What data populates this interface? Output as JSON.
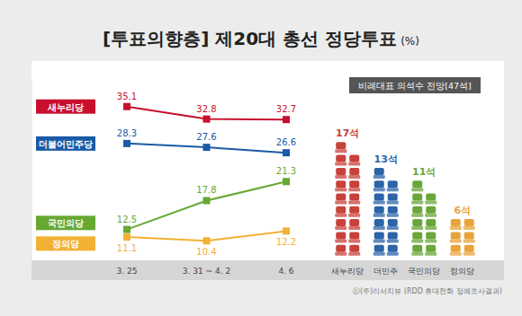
{
  "chart_data": [
    {
      "type": "line",
      "title": "[투표의향층] 제20대 총선 정당투표",
      "subtitle": "(%)",
      "categories": [
        "3. 25",
        "3. 31 ~ 4. 2",
        "4. 6"
      ],
      "series": [
        {
          "name": "새누리당",
          "color": "#c8102e",
          "values": [
            35.1,
            32.8,
            32.7
          ]
        },
        {
          "name": "더불어민주당",
          "color": "#1a5aa6",
          "values": [
            28.3,
            27.6,
            26.6
          ]
        },
        {
          "name": "국민의당",
          "color": "#66a832",
          "values": [
            12.5,
            17.8,
            21.3
          ]
        },
        {
          "name": "정의당",
          "color": "#f2b134",
          "values": [
            11.1,
            10.4,
            12.2
          ]
        }
      ],
      "ylim": [
        5,
        40
      ],
      "tick_labels": "x",
      "data_labels": true,
      "marker": "square",
      "legend": "left",
      "annotations": [
        "ⓒ(주)리서치뷰 (RDD 휴대전화 정례조사결과)"
      ]
    },
    {
      "type": "pictogram",
      "title": "비례대표 의석수 전망[47석]",
      "categories": [
        "새누리당",
        "더민주",
        "국민의당",
        "정의당"
      ],
      "values": [
        17,
        13,
        11,
        6
      ],
      "value_labels": [
        "17석",
        "13석",
        "11석",
        "6석"
      ],
      "colors": [
        "#c8413b",
        "#2c64a8",
        "#6aa63a",
        "#e8a33a"
      ],
      "data_labels": true
    }
  ]
}
